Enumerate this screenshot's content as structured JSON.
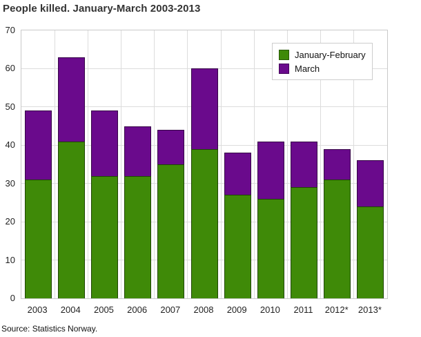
{
  "title": "People killed. January-March 2003-2013",
  "source": "Source: Statistics Norway.",
  "legend": {
    "items": [
      {
        "label": "January-February",
        "color": "#3f8a08"
      },
      {
        "label": "March",
        "color": "#6a0a8c"
      }
    ]
  },
  "chart_data": {
    "type": "bar",
    "stacked": true,
    "title": "People killed. January-March 2003-2013",
    "categories": [
      "2003",
      "2004",
      "2005",
      "2006",
      "2007",
      "2008",
      "2009",
      "2010",
      "2011",
      "2012*",
      "2013*"
    ],
    "series": [
      {
        "name": "January-February",
        "color": "#3f8a08",
        "values": [
          31,
          41,
          32,
          32,
          35,
          39,
          27,
          26,
          29,
          31,
          24
        ]
      },
      {
        "name": "March",
        "color": "#6a0a8c",
        "values": [
          18,
          22,
          17,
          13,
          9,
          21,
          11,
          15,
          12,
          8,
          12
        ]
      }
    ],
    "totals": [
      49,
      63,
      49,
      45,
      44,
      60,
      38,
      41,
      41,
      39,
      36
    ],
    "xlabel": "",
    "ylabel": "",
    "ylim": [
      0,
      70
    ],
    "yticks": [
      0,
      10,
      20,
      30,
      40,
      50,
      60,
      70
    ],
    "grid": true,
    "legend_position": "top-right",
    "grid_color": "#dcdcdc",
    "plot_border_color": "#c9c9c9"
  }
}
